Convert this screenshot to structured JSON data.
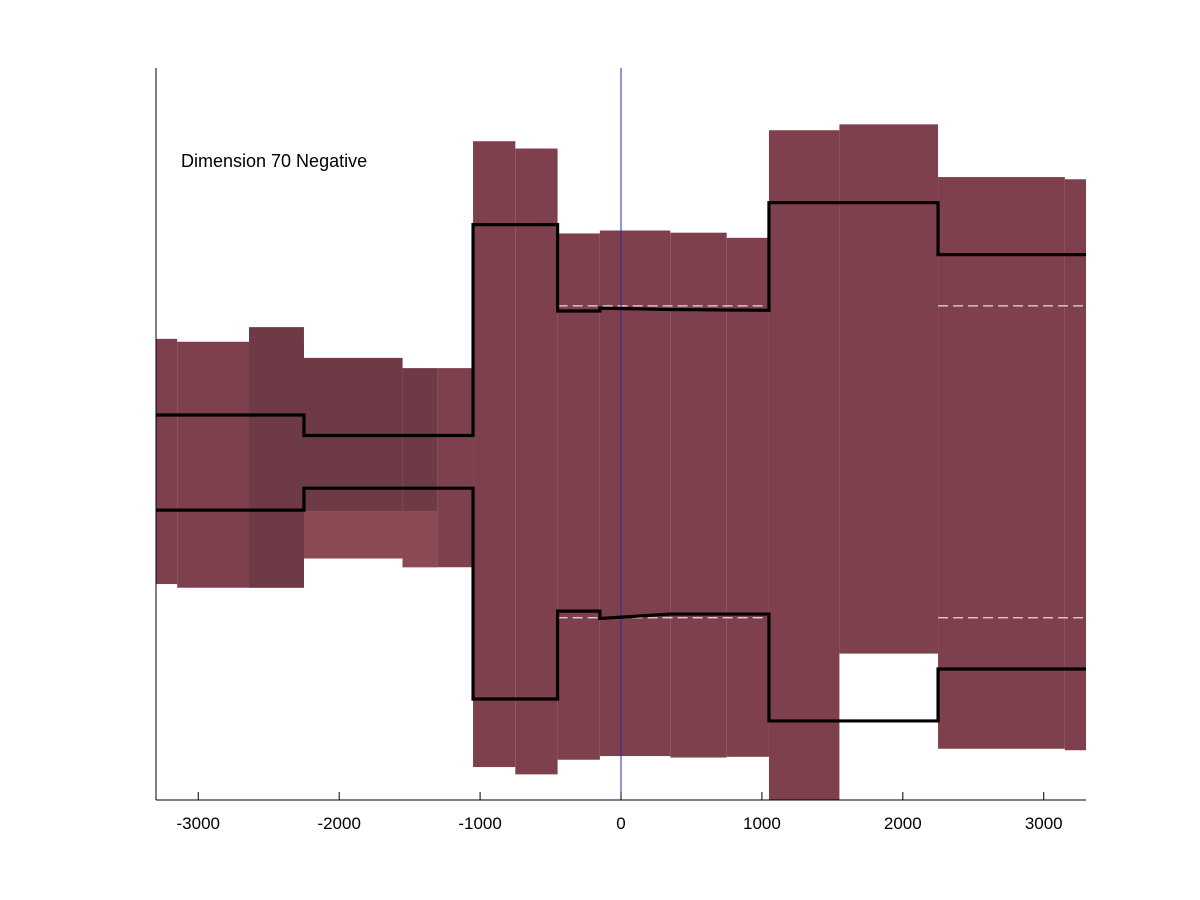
{
  "chart_data": {
    "type": "area",
    "annotation": "Dimension 70 Negative",
    "xlim": [
      -3300,
      3300
    ],
    "ylim": [
      0,
      1
    ],
    "x_ticks": [
      -3000,
      -2000,
      -1000,
      0,
      1000,
      2000,
      3000
    ],
    "x_tick_labels": [
      "-3000",
      "-2000",
      "-1000",
      "0",
      "1000",
      "2000",
      "3000"
    ],
    "grid": false,
    "legend": "none",
    "vline_x": 0,
    "colors": {
      "band": "#7f404d",
      "band_light": "#8c4a54",
      "band_dark": "#6e3a45",
      "line": "#000000",
      "vline": "#2a2aa8",
      "axis": "#000000",
      "dashed": "#dddddd"
    },
    "bands": [
      {
        "x0": -3300,
        "x1": -3150,
        "y0": 0.295,
        "y1": 0.63
      },
      {
        "x0": -3150,
        "x1": -2640,
        "y0": 0.29,
        "y1": 0.626
      },
      {
        "x0": -2640,
        "x1": -2250,
        "y0": 0.29,
        "y1": 0.626,
        "shade": "mixed"
      },
      {
        "x0": -2250,
        "x1": -1550,
        "y0": 0.33,
        "y1": 0.604,
        "shade": "dark"
      },
      {
        "x0": -1550,
        "x1": -1300,
        "y0": 0.318,
        "y1": 0.59,
        "shade": "dark"
      },
      {
        "x0": -1300,
        "x1": -1050,
        "y0": 0.318,
        "y1": 0.59
      },
      {
        "x0": -1050,
        "x1": -750,
        "y0": 0.045,
        "y1": 0.9
      },
      {
        "x0": -750,
        "x1": -450,
        "y0": 0.035,
        "y1": 0.89
      },
      {
        "x0": -450,
        "x1": -150,
        "y0": 0.055,
        "y1": 0.774
      },
      {
        "x0": -150,
        "x1": 350,
        "y0": 0.06,
        "y1": 0.778
      },
      {
        "x0": 350,
        "x1": 750,
        "y0": 0.058,
        "y1": 0.775
      },
      {
        "x0": 750,
        "x1": 1050,
        "y0": 0.059,
        "y1": 0.768
      },
      {
        "x0": 1050,
        "x1": 1550,
        "y0": 0.0,
        "y1": 0.915
      },
      {
        "x0": 1550,
        "x1": 2250,
        "y0": 0.2,
        "y1": 0.923
      },
      {
        "x0": 2250,
        "x1": 3150,
        "y0": 0.07,
        "y1": 0.851
      },
      {
        "x0": 3150,
        "x1": 3300,
        "y0": 0.068,
        "y1": 0.848
      }
    ],
    "upper_line": {
      "x": [
        -3300,
        -2250,
        -2250,
        -1050,
        -1050,
        -450,
        -450,
        -150,
        -150,
        350,
        1050,
        1050,
        2250,
        2250,
        3300
      ],
      "y": [
        0.526,
        0.526,
        0.498,
        0.498,
        0.786,
        0.786,
        0.668,
        0.668,
        0.672,
        0.67,
        0.669,
        0.816,
        0.816,
        0.745,
        0.745
      ]
    },
    "lower_line": {
      "x": [
        -3300,
        -2250,
        -2250,
        -1050,
        -1050,
        -450,
        -450,
        -150,
        -150,
        350,
        1050,
        1050,
        2250,
        2250,
        3300
      ],
      "y": [
        0.396,
        0.396,
        0.426,
        0.426,
        0.138,
        0.138,
        0.258,
        0.258,
        0.248,
        0.254,
        0.254,
        0.108,
        0.108,
        0.179,
        0.179
      ]
    },
    "dashed_lines": [
      {
        "x0": -450,
        "x1": 1050,
        "y": 0.675
      },
      {
        "x0": 2250,
        "x1": 3300,
        "y": 0.675
      },
      {
        "x0": -450,
        "x1": 1050,
        "y": 0.249
      },
      {
        "x0": 2250,
        "x1": 3300,
        "y": 0.249
      }
    ]
  }
}
